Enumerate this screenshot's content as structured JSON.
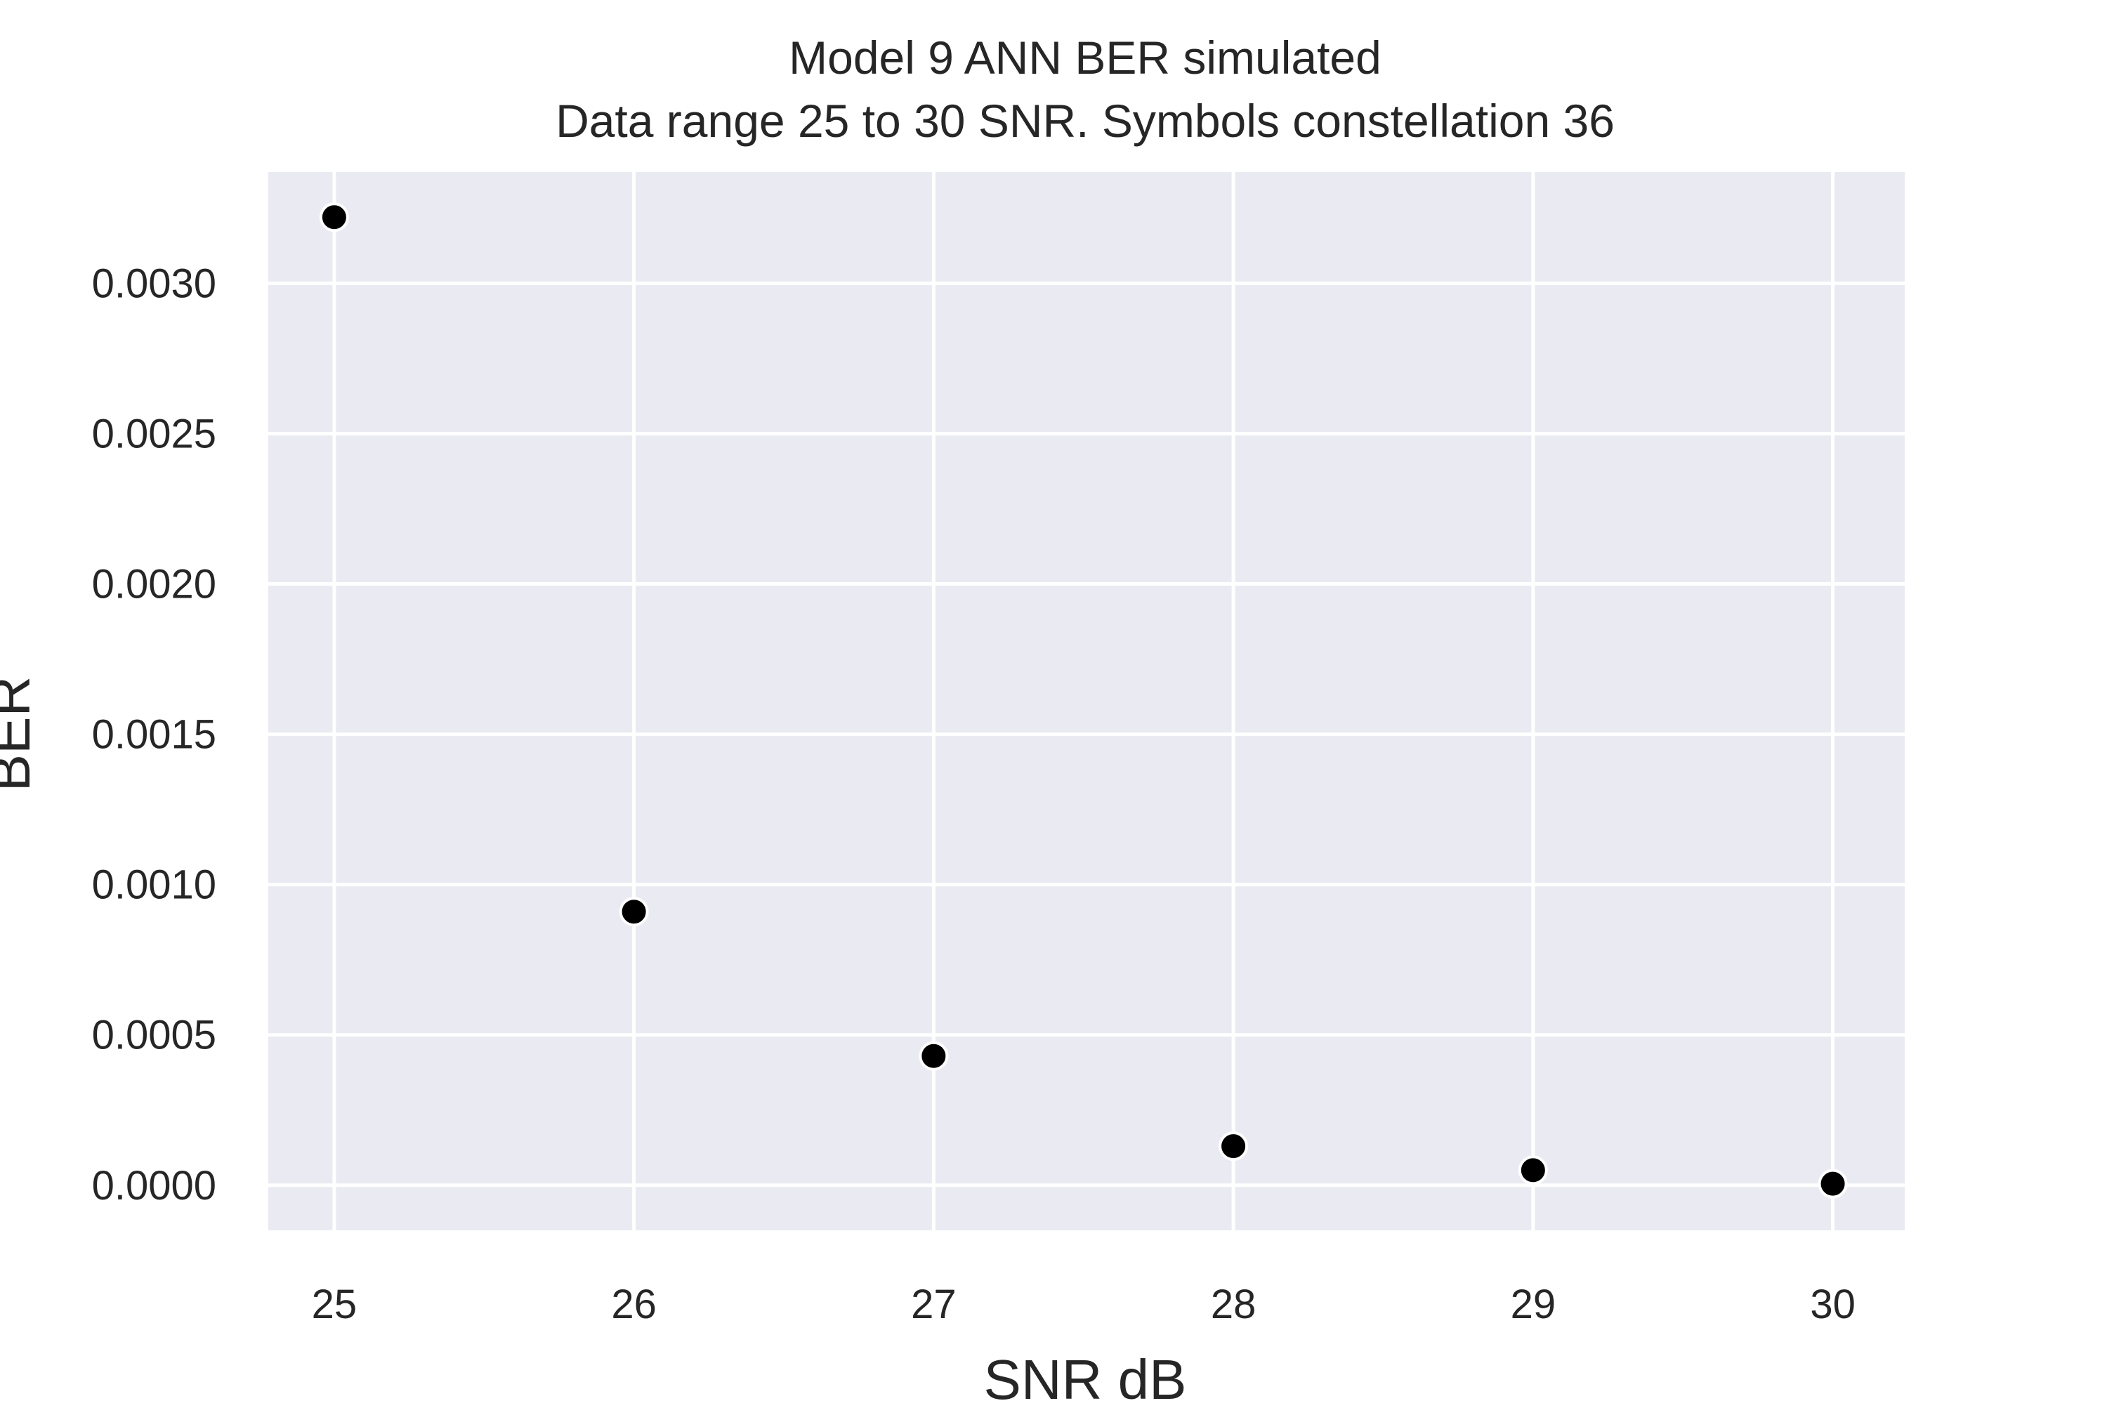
{
  "chart_data": {
    "type": "scatter",
    "title": "Model 9 ANN BER simulated",
    "subtitle": "Data range 25 to 30 SNR. Symbols constellation 36",
    "xlabel": "SNR dB",
    "ylabel": "BER",
    "x": [
      25,
      26,
      27,
      28,
      29,
      30
    ],
    "y": [
      0.00322,
      0.00091,
      0.00043,
      0.00013,
      5e-05,
      5e-06
    ],
    "xlim": [
      24.78,
      30.24
    ],
    "ylim": [
      -0.00015,
      0.00337
    ],
    "x_ticks": [
      25,
      26,
      27,
      28,
      29,
      30
    ],
    "x_tick_labels": [
      "25",
      "26",
      "27",
      "28",
      "29",
      "30"
    ],
    "y_ticks": [
      0,
      0.0005,
      0.001,
      0.0015,
      0.002,
      0.0025,
      0.003
    ],
    "y_tick_labels": [
      "0.0000",
      "0.0005",
      "0.0010",
      "0.0015",
      "0.0020",
      "0.0025",
      "0.0030"
    ],
    "grid": true,
    "style": "seaborn-darkgrid",
    "colors": {
      "plot_background": "#eaeaf2",
      "grid": "#ffffff",
      "marker": "#000000",
      "marker_edge": "#ffffff",
      "text": "#262626"
    }
  }
}
